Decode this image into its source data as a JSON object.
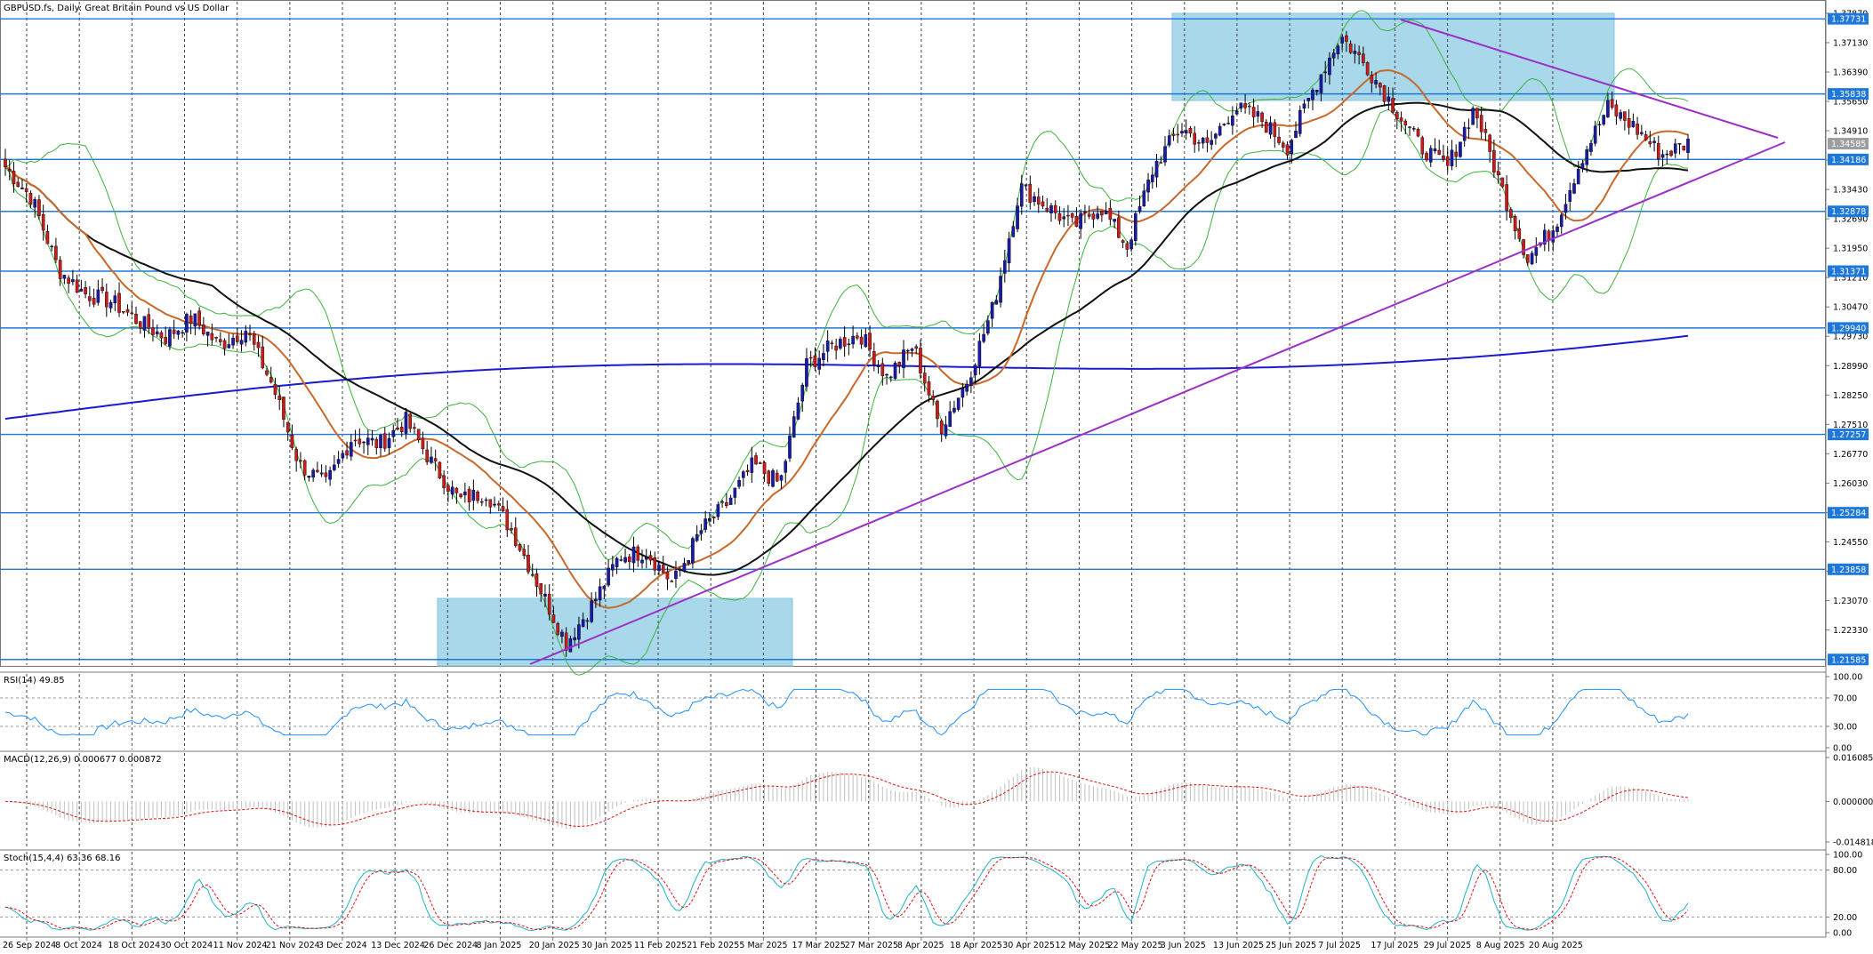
{
  "window": {
    "title": "GBPUSD.fs, Daily:  Great Britain Pound vs US Dollar"
  },
  "colors": {
    "bull_candle": "#1a1aa8",
    "bear_candle": "#cc1b1b",
    "bollinger": "#3cb43c",
    "ma_fast": "#c8692b",
    "ma_mid": "#111111",
    "ma_slow": "#1a1ad2",
    "trendline": "#9b30c8",
    "hline": "#1e78dc",
    "zone_fill": "#a8d8ea",
    "grid": "#444444",
    "rsi_line": "#1e90ff",
    "macd_hist": "#c0c0c0",
    "macd_signal": "#dd1111",
    "stoch_main": "#20b2c8",
    "stoch_signal": "#dd1111",
    "tag_bg": "#1e78dc",
    "current_tag_bg": "#9e9e9e"
  },
  "price_axis": {
    "ticks": [
      "1.37870",
      "1.37130",
      "1.36390",
      "1.35650",
      "1.34910",
      "1.34170",
      "1.33430",
      "1.32690",
      "1.31950",
      "1.31210",
      "1.30470",
      "1.29730",
      "1.28990",
      "1.28250",
      "1.27510",
      "1.26770",
      "1.26030",
      "1.25290",
      "1.24550",
      "1.23810",
      "1.23070",
      "1.22330"
    ]
  },
  "levels": [
    {
      "label": "1.37731",
      "value": 1.37731
    },
    {
      "label": "1.35838",
      "value": 1.35838
    },
    {
      "label": "1.34186",
      "value": 1.34186
    },
    {
      "label": "1.32878",
      "value": 1.32878
    },
    {
      "label": "1.31371",
      "value": 1.31371
    },
    {
      "label": "1.29940",
      "value": 1.2994
    },
    {
      "label": "1.27257",
      "value": 1.27257
    },
    {
      "label": "1.25284",
      "value": 1.25284
    },
    {
      "label": "1.23858",
      "value": 1.23858
    },
    {
      "label": "1.21585",
      "value": 1.21585
    }
  ],
  "current_price": {
    "label": "1.34585",
    "value": 1.34585
  },
  "dates": [
    "26 Sep 2024",
    "8 Oct 2024",
    "18 Oct 2024",
    "30 Oct 2024",
    "11 Nov 2024",
    "21 Nov 2024",
    "3 Dec 2024",
    "13 Dec 2024",
    "26 Dec 2024",
    "8 Jan 2025",
    "20 Jan 2025",
    "30 Jan 2025",
    "11 Feb 2025",
    "21 Feb 2025",
    "5 Mar 2025",
    "17 Mar 2025",
    "27 Mar 2025",
    "8 Apr 2025",
    "18 Apr 2025",
    "30 Apr 2025",
    "12 May 2025",
    "22 May 2025",
    "3 Jun 2025",
    "13 Jun 2025",
    "25 Jun 2025",
    "7 Jul 2025",
    "17 Jul 2025",
    "29 Jul 2025",
    "8 Aug 2025",
    "20 Aug 2025"
  ],
  "rsi": {
    "title": "RSI(14) 49.85",
    "ticks": [
      "100.00",
      "70.00",
      "30.00",
      "0.00"
    ]
  },
  "macd": {
    "title": "MACD(12,26,9) 0.000677 0.000872",
    "ticks": [
      "0.016085",
      "0.000000",
      "-0.014818"
    ]
  },
  "stoch": {
    "title": "Stoch(15,4,4) 63.36 68.16",
    "ticks": [
      "100.00",
      "80.00",
      "20.00",
      "0.00"
    ]
  },
  "chart_data": {
    "type": "candlestick",
    "symbol": "GBPUSD.fs",
    "timeframe": "Daily",
    "x": [
      "26 Sep 2024",
      "8 Oct 2024",
      "18 Oct 2024",
      "30 Oct 2024",
      "11 Nov 2024",
      "21 Nov 2024",
      "3 Dec 2024",
      "13 Dec 2024",
      "26 Dec 2024",
      "8 Jan 2025",
      "20 Jan 2025",
      "30 Jan 2025",
      "11 Feb 2025",
      "21 Feb 2025",
      "5 Mar 2025",
      "17 Mar 2025",
      "27 Mar 2025",
      "8 Apr 2025",
      "18 Apr 2025",
      "30 Apr 2025",
      "12 May 2025",
      "22 May 2025",
      "3 Jun 2025",
      "13 Jun 2025",
      "25 Jun 2025",
      "7 Jul 2025",
      "17 Jul 2025",
      "29 Jul 2025",
      "8 Aug 2025",
      "20 Aug 2025"
    ],
    "ylim": [
      1.2158,
      1.3787
    ],
    "close_path": [
      1.34,
      1.332,
      1.314,
      1.308,
      1.306,
      1.301,
      1.297,
      1.302,
      1.295,
      1.299,
      1.285,
      1.265,
      1.26,
      1.272,
      1.27,
      1.276,
      1.265,
      1.256,
      1.258,
      1.248,
      1.234,
      1.22,
      1.23,
      1.242,
      1.243,
      1.235,
      1.248,
      1.255,
      1.265,
      1.26,
      1.29,
      1.295,
      1.298,
      1.287,
      1.295,
      1.274,
      1.286,
      1.305,
      1.335,
      1.33,
      1.325,
      1.33,
      1.32,
      1.34,
      1.35,
      1.345,
      1.355,
      1.352,
      1.345,
      1.36,
      1.373,
      1.365,
      1.355,
      1.345,
      1.34,
      1.355,
      1.335,
      1.317,
      1.325,
      1.342,
      1.355,
      1.35,
      1.343,
      1.346
    ],
    "bollinger": {
      "periods": 20,
      "shown": true
    },
    "moving_averages": [
      "fast",
      "mid",
      "slow"
    ],
    "grid": true
  }
}
